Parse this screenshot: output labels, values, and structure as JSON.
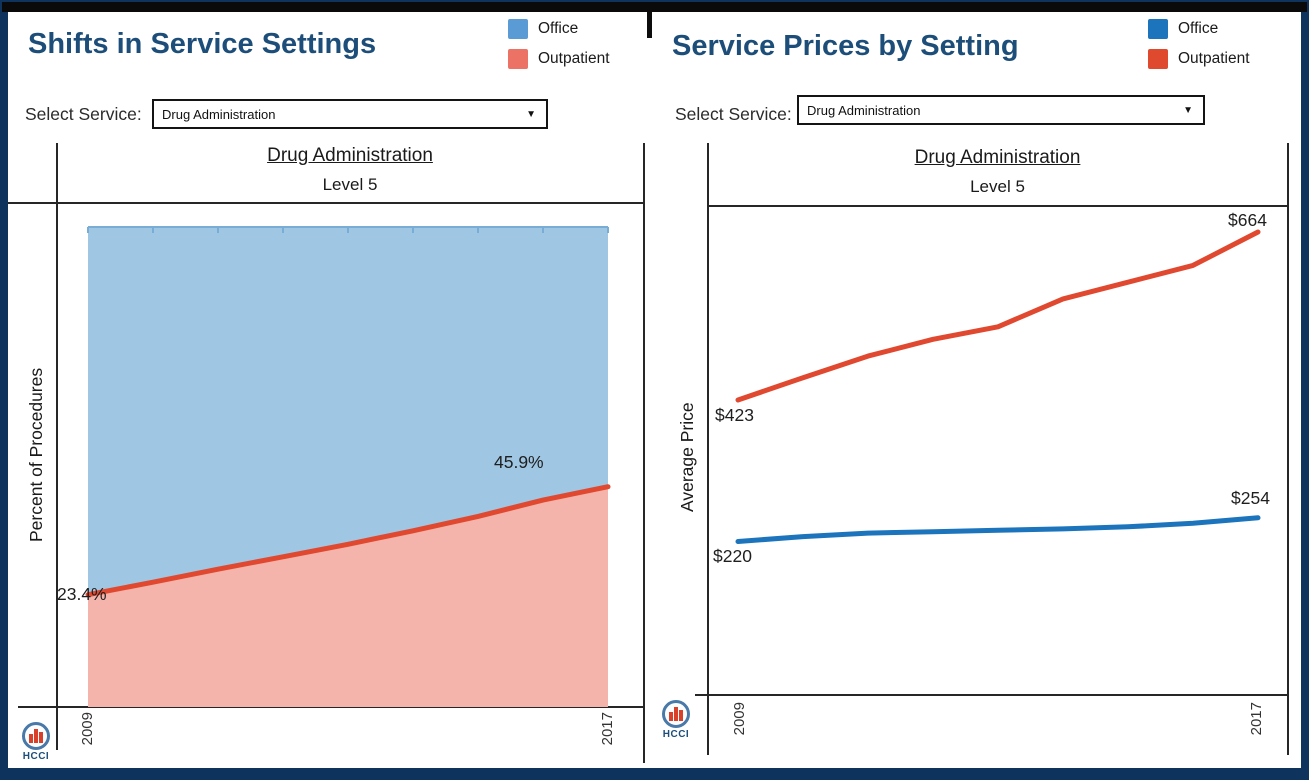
{
  "left": {
    "title": "Shifts in Service Settings",
    "legend": [
      {
        "label": "Office",
        "color": "#5b9bd5"
      },
      {
        "label": "Outpatient",
        "color": "#ec7265"
      }
    ],
    "select_label": "Select Service:",
    "select_value": "Drug Administration",
    "chart_title": "Drug Administration",
    "chart_subtitle": "Level 5",
    "y_axis_label": "Percent of Procedures",
    "annotations": {
      "start": "23.4%",
      "end": "45.9%"
    },
    "x_ticks": [
      "2009",
      "2017"
    ],
    "logo_text": "HCCI"
  },
  "right": {
    "title": "Service Prices by Setting",
    "legend": [
      {
        "label": "Office",
        "color": "#1c74bc"
      },
      {
        "label": "Outpatient",
        "color": "#df4a2f"
      }
    ],
    "select_label": "Select Service:",
    "select_value": "Drug Administration",
    "chart_title": "Drug Administration",
    "chart_subtitle": "Level 5",
    "y_axis_label": "Average Price",
    "annotations": {
      "outpatient_start": "$423",
      "outpatient_end": "$664",
      "office_start": "$220",
      "office_end": "$254"
    },
    "x_ticks": [
      "2009",
      "2017"
    ],
    "logo_text": "HCCI"
  },
  "chart_data": [
    {
      "type": "area",
      "title": "Drug Administration",
      "subtitle": "Level 5",
      "xlabel": "",
      "ylabel": "Percent of Procedures",
      "ylim": [
        0,
        100
      ],
      "stacked_to_100_percent": true,
      "grid": false,
      "legend_position": "top-right",
      "x": [
        2009,
        2010,
        2011,
        2012,
        2013,
        2014,
        2015,
        2016,
        2017
      ],
      "series": [
        {
          "name": "Office",
          "fill": "#9fc6e3",
          "edge": "#79add6",
          "values": [
            76.6,
            74.0,
            71.3,
            68.7,
            66.1,
            63.3,
            60.3,
            56.9,
            54.1
          ]
        },
        {
          "name": "Outpatient",
          "fill": "#f5b4ab",
          "line": "#e0492f",
          "values": [
            23.4,
            26.0,
            28.7,
            31.3,
            33.9,
            36.7,
            39.7,
            43.1,
            45.9
          ]
        }
      ],
      "data_labels": [
        "23.4%",
        "45.9%"
      ]
    },
    {
      "type": "line",
      "title": "Drug Administration",
      "subtitle": "Level 5",
      "xlabel": "",
      "ylabel": "Average Price",
      "ylim": [
        0,
        700
      ],
      "grid": false,
      "legend_position": "top-right",
      "x": [
        2009,
        2010,
        2011,
        2012,
        2013,
        2014,
        2015,
        2016,
        2017
      ],
      "series": [
        {
          "name": "Office",
          "color": "#1c74bc",
          "values": [
            220,
            227,
            232,
            234,
            236,
            238,
            241,
            246,
            254
          ]
        },
        {
          "name": "Outpatient",
          "color": "#e0492f",
          "values": [
            423,
            455,
            486,
            510,
            528,
            568,
            592,
            616,
            664
          ]
        }
      ],
      "data_labels": [
        "$220",
        "$254",
        "$423",
        "$664"
      ]
    }
  ]
}
